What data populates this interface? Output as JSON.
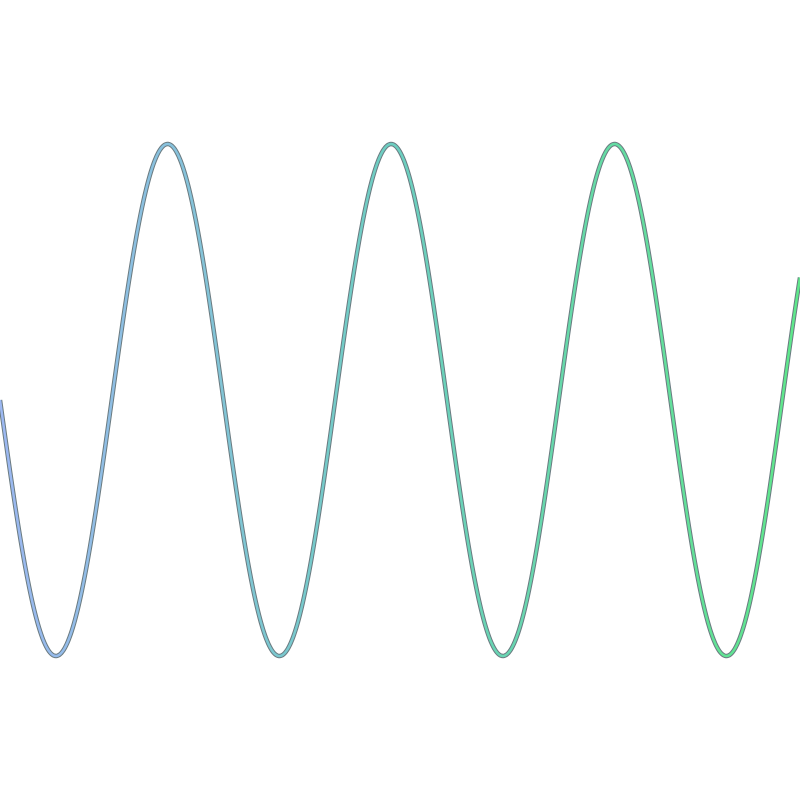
{
  "wave": {
    "colors": [
      "#9cb8f2",
      "#6ccfc0",
      "#5ee88a"
    ]
  }
}
